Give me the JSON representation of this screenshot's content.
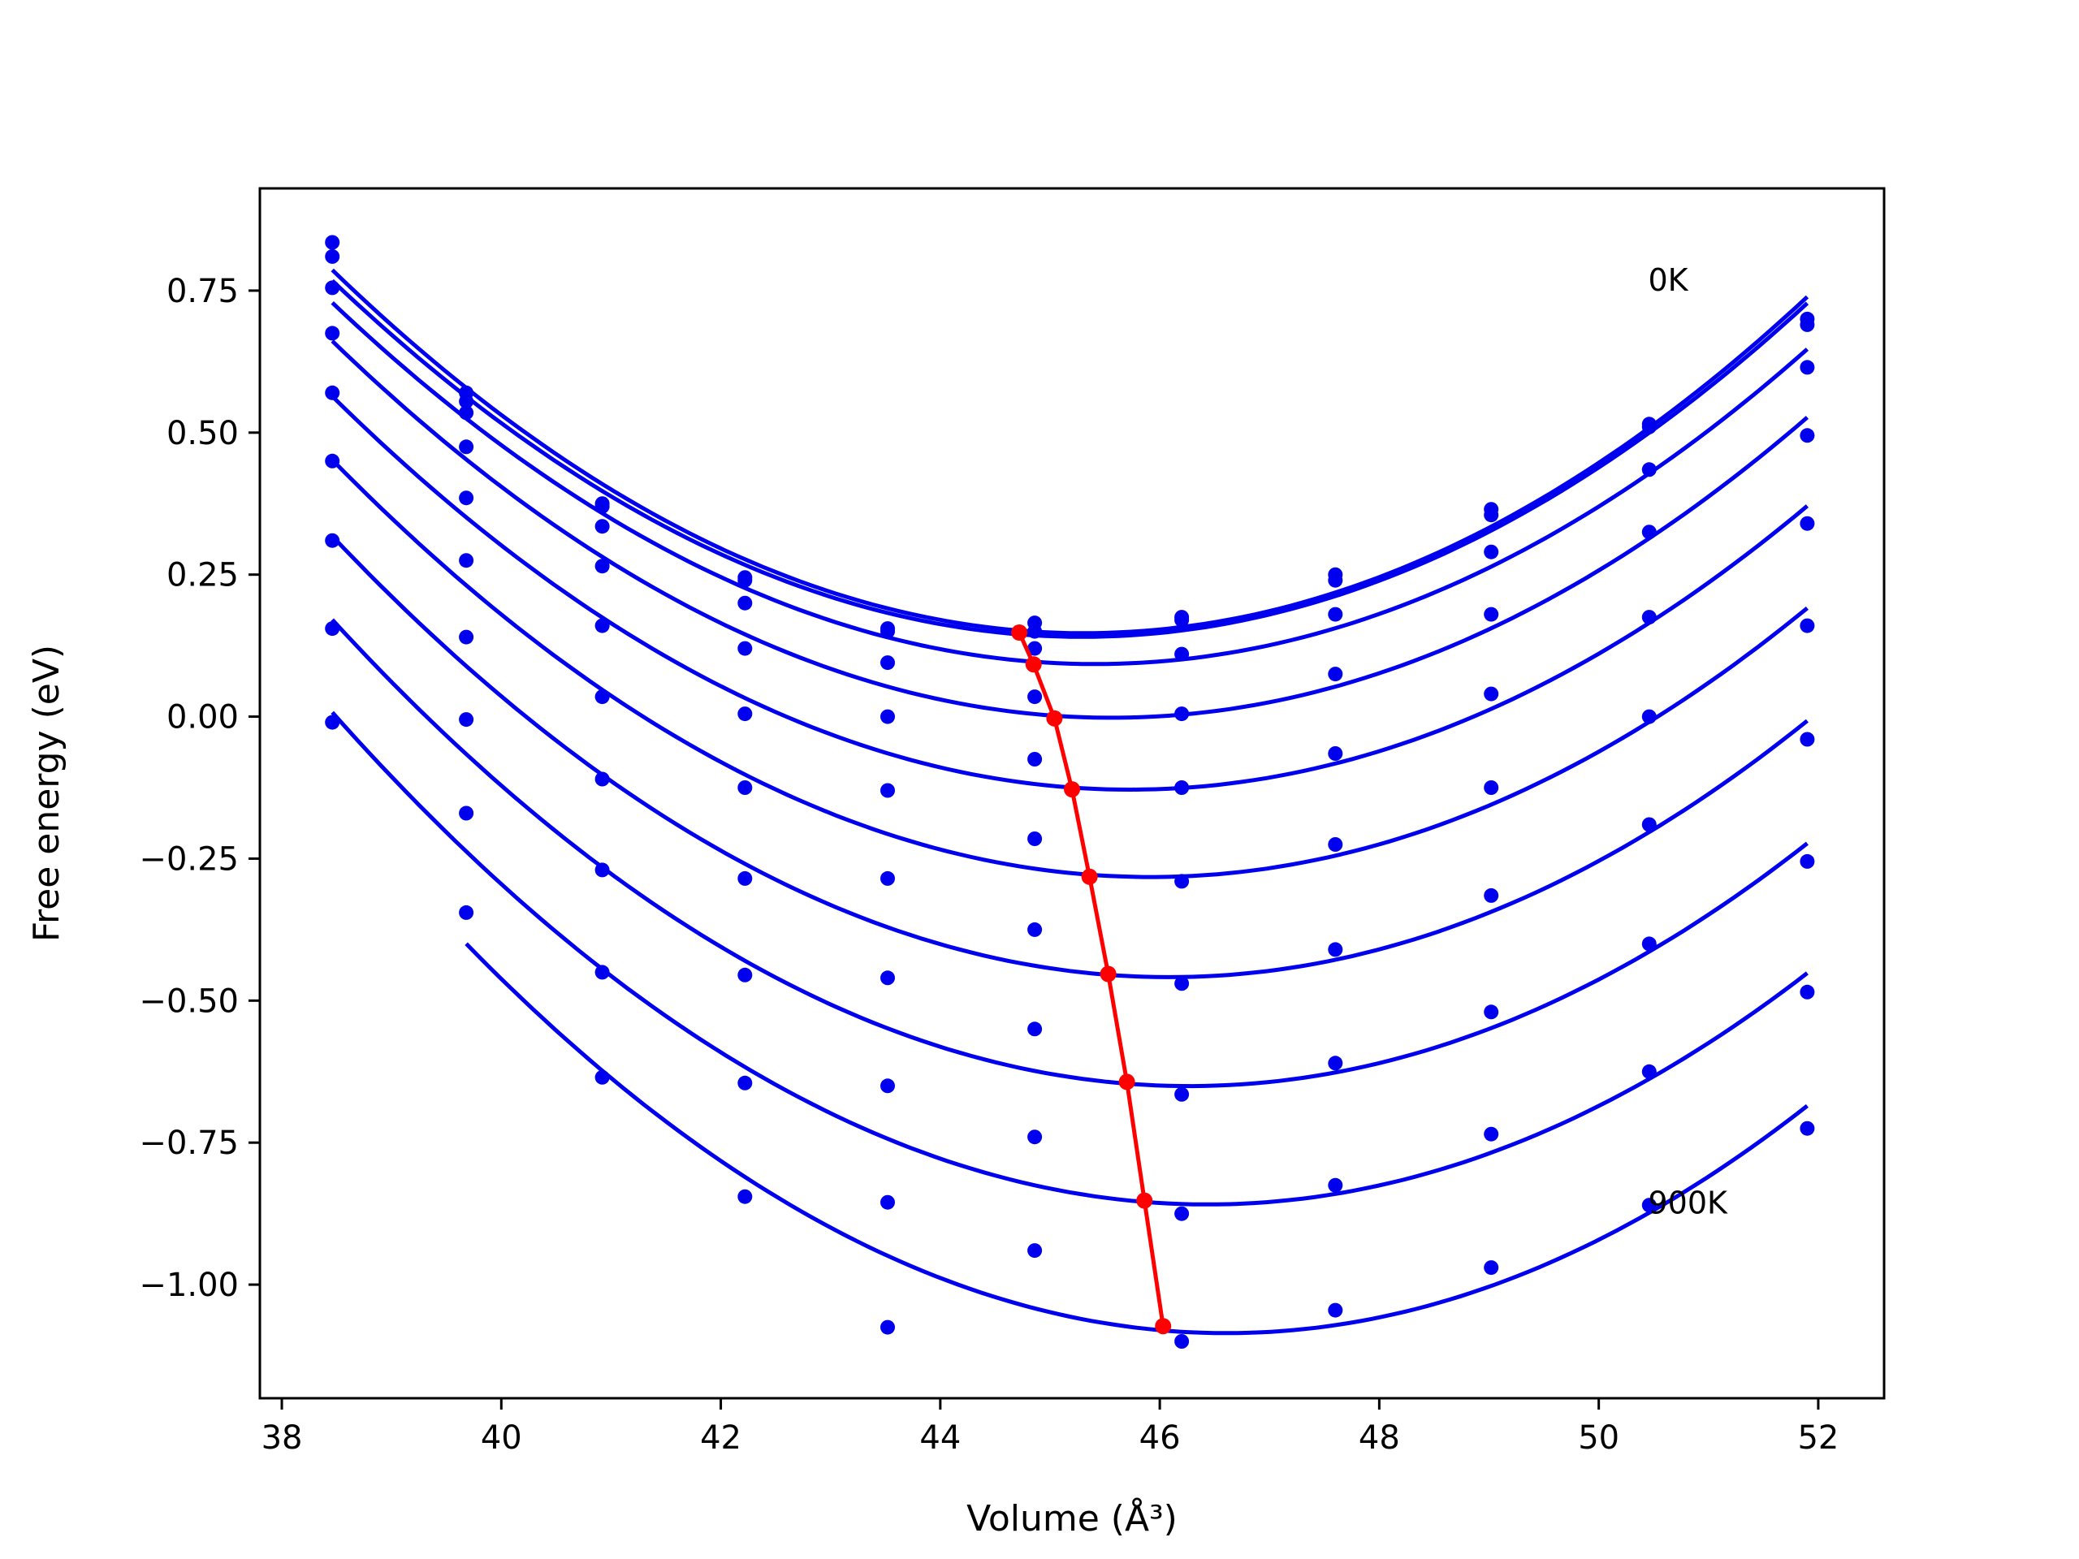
{
  "chart_data": {
    "type": "line",
    "title": "",
    "xlabel": "Volume (Å³)",
    "ylabel": "Free energy (eV)",
    "xlim": [
      37.8,
      52.6
    ],
    "ylim": [
      -1.2,
      0.93
    ],
    "xticks": [
      38,
      40,
      42,
      44,
      46,
      48,
      50,
      52
    ],
    "xtick_labels": [
      "38",
      "40",
      "42",
      "44",
      "46",
      "48",
      "50",
      "52"
    ],
    "yticks": [
      0.75,
      0.5,
      0.25,
      0.0,
      -0.25,
      -0.5,
      -0.75,
      -1.0
    ],
    "ytick_labels": [
      "0.75",
      "0.50",
      "0.25",
      "0.00",
      "−0.25",
      "−0.50",
      "−0.75",
      "−1.00"
    ],
    "grid": false,
    "annotations": [
      {
        "text": "0K",
        "x": 50.45,
        "y": 0.75
      },
      {
        "text": "900K",
        "x": 50.45,
        "y": -0.875
      }
    ],
    "x": [
      38.46,
      39.68,
      40.92,
      42.22,
      43.52,
      44.86,
      46.2,
      47.6,
      49.02,
      50.46,
      51.9
    ],
    "series": [
      {
        "values": [
          0.835,
          0.57,
          0.375,
          0.245,
          0.155,
          0.165,
          0.175,
          0.25,
          0.365,
          0.515,
          0.7
        ]
      },
      {
        "values": [
          0.81,
          0.555,
          0.37,
          0.24,
          0.15,
          0.15,
          0.17,
          0.24,
          0.355,
          0.51,
          0.69
        ]
      },
      {
        "values": [
          0.755,
          0.535,
          0.335,
          0.2,
          0.095,
          0.12,
          0.11,
          0.18,
          0.29,
          0.435,
          0.615
        ]
      },
      {
        "values": [
          0.675,
          0.475,
          0.265,
          0.12,
          0.0,
          0.035,
          0.005,
          0.075,
          0.18,
          0.325,
          0.495
        ]
      },
      {
        "values": [
          0.57,
          0.385,
          0.16,
          0.005,
          -0.13,
          -0.075,
          -0.125,
          -0.065,
          0.04,
          0.175,
          0.34
        ]
      },
      {
        "values": [
          0.45,
          0.275,
          0.035,
          -0.125,
          -0.285,
          -0.215,
          -0.29,
          -0.225,
          -0.125,
          0.0,
          0.16
        ]
      },
      {
        "values": [
          0.31,
          0.14,
          -0.11,
          -0.285,
          -0.46,
          -0.375,
          -0.47,
          -0.41,
          -0.315,
          -0.19,
          -0.04
        ]
      },
      {
        "values": [
          0.155,
          -0.005,
          -0.27,
          -0.455,
          -0.65,
          -0.55,
          -0.665,
          -0.61,
          -0.52,
          -0.4,
          -0.255
        ]
      },
      {
        "values": [
          -0.01,
          -0.17,
          -0.45,
          -0.645,
          -0.855,
          -0.74,
          -0.875,
          -0.825,
          -0.735,
          -0.625,
          -0.485
        ]
      },
      {
        "values": [
          null,
          -0.345,
          -0.635,
          -0.845,
          -1.075,
          -0.94,
          -1.1,
          -1.045,
          -0.97,
          -0.86,
          -0.725
        ]
      }
    ],
    "minima": {
      "x": [
        44.72,
        44.85,
        45.04,
        45.2,
        45.36,
        45.53,
        45.7,
        45.86,
        46.03
      ],
      "y": [
        0.148,
        0.092,
        -0.003,
        -0.128,
        -0.282,
        -0.453,
        -0.643,
        -0.852,
        -1.073
      ]
    },
    "colors": {
      "fit": "#0000ee",
      "minima": "#ff0000"
    }
  }
}
